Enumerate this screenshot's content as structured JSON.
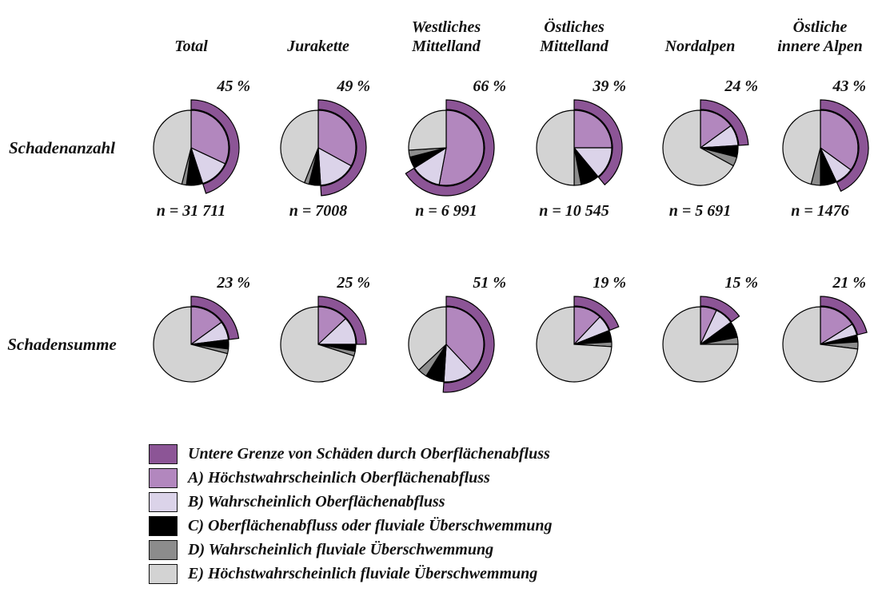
{
  "chart_data": {
    "type": "pie",
    "title": "",
    "layout_note": "Grid of 12 pie charts: 2 rows (Schadenanzahl, Schadensumme) x 6 regions. Each pie has an outer arc starting at 12 o'clock running clockwise spanning the labelled percent (= slices A + B). Inner slices drawn clockwise from 12 o'clock in order A, B, C, D, E. Legend bottom-left, white background, no axes or grid.",
    "series_keys": [
      "A",
      "B",
      "C",
      "D",
      "E"
    ],
    "columns": [
      {
        "lines": [
          "Total"
        ]
      },
      {
        "lines": [
          "Jurakette"
        ]
      },
      {
        "lines": [
          "Westliches",
          "Mittelland"
        ]
      },
      {
        "lines": [
          "Östliches",
          "Mittelland"
        ]
      },
      {
        "lines": [
          "Nordalpen"
        ]
      },
      {
        "lines": [
          "Östliche",
          "innere Alpen"
        ]
      }
    ],
    "row_groups": [
      {
        "label": "Schadenanzahl",
        "pies": [
          {
            "column": "Total",
            "percent": 45,
            "percent_label": "45 %",
            "n_label": "n = 31 711",
            "values": [
              32,
              13,
              7,
              2,
              46
            ]
          },
          {
            "column": "Jurakette",
            "percent": 49,
            "percent_label": "49 %",
            "n_label": "n = 7008",
            "values": [
              33,
              16,
              5,
              2,
              44
            ]
          },
          {
            "column": "Westliches Mittelland",
            "percent": 66,
            "percent_label": "66 %",
            "n_label": "n = 6 991",
            "values": [
              53,
              13,
              5,
              3,
              26
            ]
          },
          {
            "column": "Östliches Mittelland",
            "percent": 39,
            "percent_label": "39 %",
            "n_label": "n = 10 545",
            "values": [
              25,
              14,
              8,
              3,
              50
            ]
          },
          {
            "column": "Nordalpen",
            "percent": 24,
            "percent_label": "24 %",
            "n_label": "n = 5 691",
            "values": [
              15,
              9,
              5,
              4,
              67
            ]
          },
          {
            "column": "Östliche innere Alpen",
            "percent": 43,
            "percent_label": "43 %",
            "n_label": "n = 1476",
            "values": [
              35,
              8,
              7,
              4,
              46
            ]
          }
        ]
      },
      {
        "label": "Schadensumme",
        "pies": [
          {
            "column": "Total",
            "percent": 23,
            "percent_label": "23 %",
            "n_label": "",
            "values": [
              15,
              8,
              4,
              2,
              71
            ]
          },
          {
            "column": "Jurakette",
            "percent": 25,
            "percent_label": "25 %",
            "n_label": "",
            "values": [
              13,
              12,
              3,
              2,
              70
            ]
          },
          {
            "column": "Westliches Mittelland",
            "percent": 51,
            "percent_label": "51 %",
            "n_label": "",
            "values": [
              38,
              13,
              8,
              4,
              37
            ]
          },
          {
            "column": "Östliches Mittelland",
            "percent": 19,
            "percent_label": "19 %",
            "n_label": "",
            "values": [
              12,
              7,
              5,
              2,
              74
            ]
          },
          {
            "column": "Nordalpen",
            "percent": 15,
            "percent_label": "15 %",
            "n_label": "",
            "values": [
              7,
              8,
              7,
              3,
              75
            ]
          },
          {
            "column": "Östliche innere Alpen",
            "percent": 21,
            "percent_label": "21 %",
            "n_label": "",
            "values": [
              16,
              5,
              3,
              3,
              73
            ]
          }
        ]
      }
    ],
    "legend": [
      {
        "key": "arc",
        "label": "Untere Grenze von Schäden durch Oberflächenabfluss"
      },
      {
        "key": "A",
        "label": "A) Höchstwahrscheinlich Oberflächenabfluss"
      },
      {
        "key": "B",
        "label": "B) Wahrscheinlich Oberflächenabfluss"
      },
      {
        "key": "C",
        "label": "C) Oberflächenabfluss oder fluviale Überschwemmung"
      },
      {
        "key": "D",
        "label": "D) Wahrscheinlich fluviale Überschwemmung"
      },
      {
        "key": "E",
        "label": "E) Höchstwahrscheinlich fluviale Überschwemmung"
      }
    ],
    "colors": {
      "arc": "#8c5596",
      "A": "#b287be",
      "B": "#dbd3e9",
      "C": "#000000",
      "D": "#8c8c8c",
      "E": "#d3d3d3",
      "outline": "#000000",
      "background": "#ffffff"
    }
  }
}
